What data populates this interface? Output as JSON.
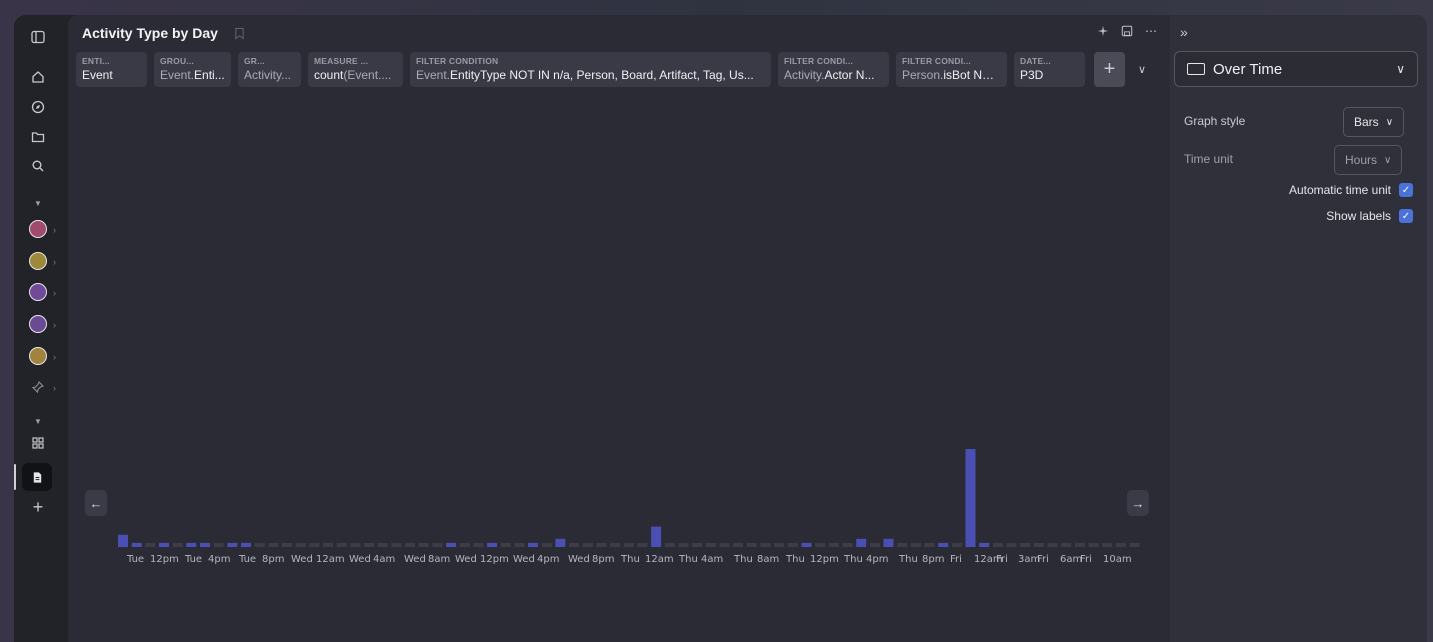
{
  "page_title": "Activity Type by Day",
  "rail": {
    "dots": [
      {
        "color": "#a04a6e"
      },
      {
        "color": "#9c8a3a"
      },
      {
        "color": "#6f4a98"
      },
      {
        "color": "#6a4a92"
      },
      {
        "color": "#a1833b"
      }
    ]
  },
  "pills": [
    {
      "caption": "ENTI...",
      "value": "Event",
      "value_dim": ""
    },
    {
      "caption": "GROU...",
      "value": "Enti...",
      "value_dim": "Event."
    },
    {
      "caption": "GR...",
      "value": "",
      "value_dim": "Activity..."
    },
    {
      "caption": "MEASURE ...",
      "value": "count",
      "value_dim": "(Event...."
    },
    {
      "caption": "FILTER CONDITION",
      "value": "EntityType NOT IN n/a, Person, Board, Artifact, Tag, Us...",
      "value_dim": "Event."
    },
    {
      "caption": "FILTER CONDI...",
      "value": "Actor N...",
      "value_dim": "Activity."
    },
    {
      "caption": "FILTER CONDI...",
      "value": "isBot NO...",
      "value_dim": "Person."
    },
    {
      "caption": "DATE...",
      "value": "P3D",
      "value_dim": ""
    }
  ],
  "side": {
    "viz_type": "Over Time",
    "graph_style_label": "Graph style",
    "graph_style_value": "Bars",
    "time_unit_label": "Time unit",
    "time_unit_value": "Hours",
    "auto_time_label": "Automatic time unit",
    "auto_time_checked": true,
    "show_labels_label": "Show labels",
    "show_labels_checked": true
  },
  "chart_data": {
    "type": "bar",
    "series": [
      {
        "values": [
          3,
          1,
          0,
          1,
          0,
          1,
          1,
          0,
          1,
          1,
          0,
          0,
          0,
          0,
          0,
          0,
          0,
          0,
          0,
          0,
          0,
          0,
          0,
          0,
          1,
          0,
          0,
          1,
          0,
          0,
          1,
          0,
          2,
          0,
          0,
          0,
          0,
          0,
          0,
          5,
          0,
          0,
          0,
          0,
          0,
          0,
          0,
          0,
          0,
          0,
          1,
          0,
          0,
          0,
          2,
          0,
          2,
          0,
          0,
          0,
          1,
          0,
          24,
          1,
          0,
          0,
          0,
          0,
          0,
          0,
          0,
          0,
          0,
          0,
          0
        ]
      }
    ],
    "bar_color": "#4a4fb3",
    "empty_color": "#3c3d47",
    "tick_labels": [
      "Tue",
      "12pm",
      "Tue",
      "4pm",
      "Tue",
      "8pm",
      "Wed",
      "12am",
      "Wed",
      "4am",
      "Wed",
      "8am",
      "Wed",
      "12pm",
      "Wed",
      "4pm",
      "Wed",
      "8pm",
      "Thu",
      "12am",
      "Thu",
      "4am",
      "Thu",
      "8am",
      "Thu",
      "12pm",
      "Thu",
      "4pm",
      "Thu",
      "8pm",
      "Fri",
      "12am",
      "Fri",
      "3am",
      "Fri",
      "6am",
      "Fri",
      "10am"
    ]
  }
}
